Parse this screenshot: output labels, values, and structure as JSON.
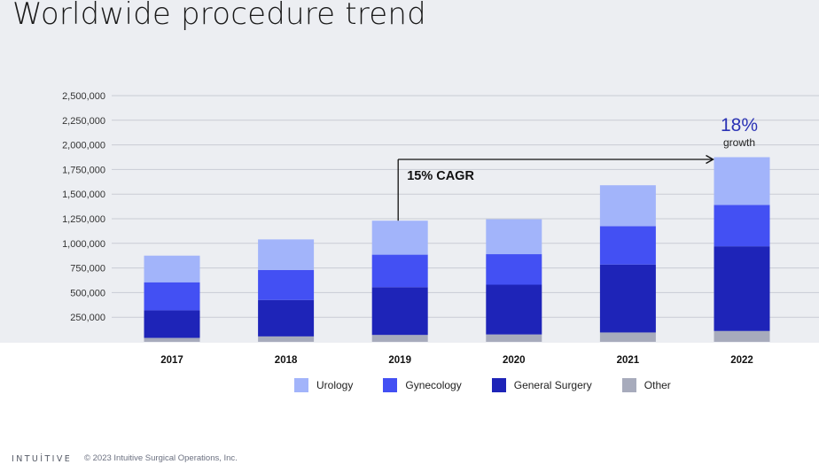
{
  "page": {
    "title": "Worldwide procedure trend",
    "logo_text": "INTUİTIVE",
    "copyright": "© 2023 Intuitive Surgical Operations, Inc."
  },
  "chart_data": {
    "type": "bar",
    "stacked": true,
    "title": "",
    "xlabel": "",
    "ylabel": "",
    "ylim": [
      0,
      2500000
    ],
    "yticks": [
      250000,
      500000,
      750000,
      1000000,
      1250000,
      1500000,
      1750000,
      2000000,
      2250000,
      2500000
    ],
    "ytick_labels": [
      "250,000",
      "500,000",
      "750,000",
      "1,000,000",
      "1,250,000",
      "1,500,000",
      "1,750,000",
      "2,000,000",
      "2,250,000",
      "2,500,000"
    ],
    "grid": true,
    "categories": [
      "2017",
      "2018",
      "2019",
      "2020",
      "2021",
      "2022"
    ],
    "series": [
      {
        "name": "Other",
        "color": "#a7abbc",
        "values": [
          40000,
          55000,
          70000,
          75000,
          95000,
          110000
        ]
      },
      {
        "name": "General Surgery",
        "color": "#1e24b8",
        "values": [
          280000,
          370000,
          485000,
          505000,
          690000,
          860000
        ]
      },
      {
        "name": "Gynecology",
        "color": "#4350f3",
        "values": [
          285000,
          305000,
          330000,
          310000,
          390000,
          420000
        ]
      },
      {
        "name": "Urology",
        "color": "#a2b4fa",
        "values": [
          270000,
          310000,
          345000,
          355000,
          415000,
          485000
        ]
      }
    ],
    "legend_order": [
      "Urology",
      "Gynecology",
      "General Surgery",
      "Other"
    ],
    "legend_position": "bottom",
    "annotations": {
      "cagr_label": "15% CAGR",
      "growth_value": "18%",
      "growth_label": "growth"
    },
    "colors": {
      "growth_value": "#2b33b5",
      "grid": "#c9ccd4",
      "axis_text": "#333333"
    }
  }
}
